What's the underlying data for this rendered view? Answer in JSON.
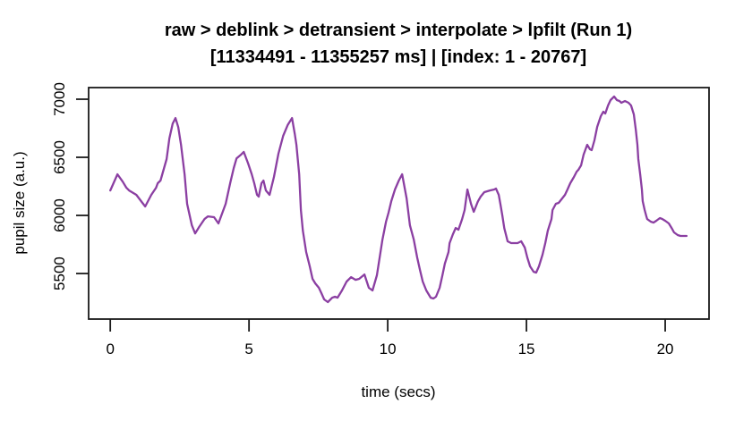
{
  "title": {
    "line1": "raw > deblink > detransient > interpolate > lpfilt (Run 1)",
    "line2": "[11334491 - 11355257 ms] | [index: 1 - 20767]"
  },
  "axes": {
    "x_label": "time (secs)",
    "y_label": "pupil size (a.u.)",
    "x_ticks": [
      0,
      5,
      10,
      15,
      20
    ],
    "y_ticks": [
      5500,
      6000,
      6500,
      7000
    ]
  },
  "colors": {
    "line": "#8b3fa2",
    "axis": "#1a1a1a",
    "background": "#ffffff"
  },
  "chart_data": {
    "type": "line",
    "title": "raw > deblink > detransient > interpolate > lpfilt (Run 1)",
    "subtitle": "[11334491 - 11355257 ms] | [index: 1 - 20767]",
    "xlabel": "time (secs)",
    "ylabel": "pupil size (a.u.)",
    "xlim": [
      -0.78,
      21.58
    ],
    "ylim": [
      5108,
      7100
    ],
    "grid": false,
    "legend": "none",
    "series": [
      {
        "name": "pupil-size-trace",
        "x": [
          0.0,
          0.26,
          0.45,
          0.58,
          0.68,
          0.94,
          1.16,
          1.26,
          1.48,
          1.65,
          1.71,
          1.81,
          2.03,
          2.13,
          2.25,
          2.35,
          2.45,
          2.55,
          2.68,
          2.77,
          2.94,
          3.06,
          3.2,
          3.4,
          3.52,
          3.74,
          3.9,
          4.16,
          4.32,
          4.45,
          4.55,
          4.7,
          4.81,
          4.97,
          5.1,
          5.19,
          5.29,
          5.35,
          5.45,
          5.52,
          5.61,
          5.74,
          5.9,
          6.06,
          6.23,
          6.4,
          6.55,
          6.65,
          6.71,
          6.81,
          6.87,
          6.94,
          7.06,
          7.19,
          7.29,
          7.39,
          7.52,
          7.61,
          7.71,
          7.84,
          8.0,
          8.1,
          8.19,
          8.35,
          8.52,
          8.68,
          8.84,
          8.97,
          9.16,
          9.32,
          9.45,
          9.61,
          9.71,
          9.81,
          9.94,
          10.03,
          10.13,
          10.26,
          10.4,
          10.52,
          10.68,
          10.8,
          10.94,
          11.06,
          11.16,
          11.26,
          11.39,
          11.55,
          11.65,
          11.74,
          11.87,
          11.97,
          12.06,
          12.19,
          12.23,
          12.35,
          12.45,
          12.55,
          12.68,
          12.77,
          12.87,
          13.0,
          13.1,
          13.25,
          13.35,
          13.48,
          13.68,
          13.84,
          13.9,
          14.0,
          14.06,
          14.13,
          14.2,
          14.28,
          14.32,
          14.45,
          14.68,
          14.81,
          14.94,
          15.03,
          15.13,
          15.26,
          15.35,
          15.45,
          15.58,
          15.68,
          15.77,
          15.9,
          15.94,
          16.06,
          16.16,
          16.26,
          16.39,
          16.48,
          16.58,
          16.71,
          16.81,
          16.87,
          16.97,
          17.06,
          17.19,
          17.29,
          17.35,
          17.45,
          17.55,
          17.68,
          17.77,
          17.84,
          17.94,
          18.03,
          18.16,
          18.26,
          18.35,
          18.42,
          18.55,
          18.68,
          18.77,
          18.87,
          18.94,
          19.0,
          19.03,
          19.1,
          19.16,
          19.19,
          19.26,
          19.32,
          19.35,
          19.48,
          19.58,
          19.68,
          19.81,
          19.9,
          20.0,
          20.13,
          20.23,
          20.32,
          20.45,
          20.55,
          20.77
        ],
        "y": [
          6215,
          6354,
          6290,
          6238,
          6215,
          6177,
          6108,
          6077,
          6177,
          6238,
          6277,
          6300,
          6485,
          6662,
          6790,
          6838,
          6760,
          6608,
          6354,
          6100,
          5915,
          5845,
          5900,
          5970,
          5992,
          5985,
          5931,
          6100,
          6277,
          6408,
          6490,
          6520,
          6546,
          6446,
          6354,
          6277,
          6177,
          6162,
          6277,
          6300,
          6215,
          6177,
          6331,
          6531,
          6685,
          6780,
          6838,
          6700,
          6608,
          6354,
          6046,
          5869,
          5685,
          5562,
          5454,
          5415,
          5377,
          5331,
          5277,
          5254,
          5292,
          5300,
          5292,
          5354,
          5431,
          5469,
          5446,
          5454,
          5492,
          5377,
          5354,
          5485,
          5638,
          5792,
          5946,
          6023,
          6123,
          6223,
          6300,
          6354,
          6146,
          5915,
          5792,
          5638,
          5531,
          5431,
          5354,
          5292,
          5285,
          5300,
          5377,
          5485,
          5585,
          5685,
          5762,
          5838,
          5892,
          5877,
          5969,
          6046,
          6223,
          6100,
          6031,
          6120,
          6162,
          6200,
          6215,
          6223,
          6231,
          6177,
          6100,
          6000,
          5890,
          5815,
          5777,
          5762,
          5762,
          5777,
          5723,
          5638,
          5562,
          5515,
          5508,
          5562,
          5662,
          5762,
          5869,
          5969,
          6046,
          6100,
          6108,
          6138,
          6177,
          6223,
          6277,
          6331,
          6377,
          6392,
          6431,
          6523,
          6608,
          6569,
          6562,
          6646,
          6762,
          6854,
          6892,
          6877,
          6946,
          6992,
          7023,
          6992,
          6985,
          6969,
          6985,
          6969,
          6946,
          6869,
          6738,
          6608,
          6485,
          6354,
          6223,
          6123,
          6046,
          5992,
          5969,
          5946,
          5938,
          5954,
          5977,
          5969,
          5954,
          5931,
          5892,
          5854,
          5831,
          5823,
          5823
        ]
      }
    ]
  }
}
